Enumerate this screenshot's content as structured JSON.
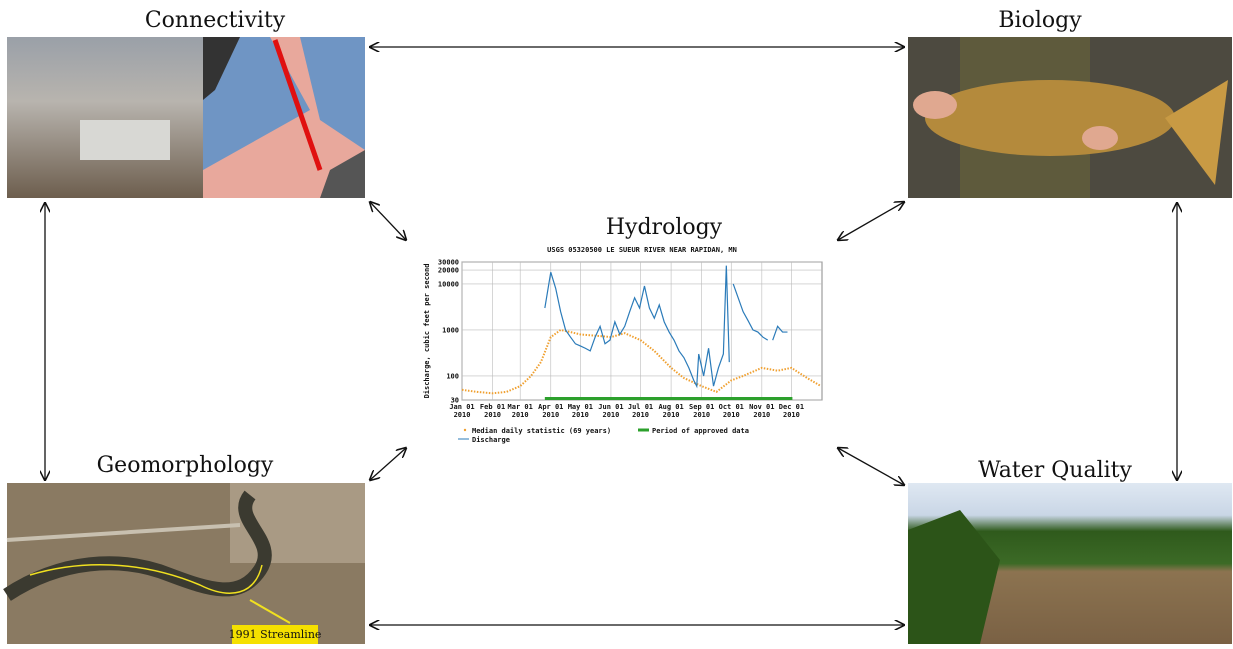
{
  "nodes": [
    {
      "label": "Connectivity"
    },
    {
      "label": "Biology"
    },
    {
      "label": "Hydrology"
    },
    {
      "label": "Geomorphology"
    },
    {
      "label": "Water Quality"
    }
  ],
  "annotation": "1991 Streamline",
  "chart_data": {
    "type": "line",
    "title": "USGS 05320500 LE SUEUR RIVER NEAR RAPIDAN, MN",
    "y_label": "Discharge, cubic feet per second",
    "log_y": true,
    "grid": true,
    "xlim": [
      0,
      365
    ],
    "ylim": [
      30,
      30000
    ],
    "yticks": [
      30,
      100,
      1000,
      10000,
      20000,
      30000
    ],
    "xticks": [
      {
        "value": 0,
        "label": "Jan 01 2010"
      },
      {
        "value": 31,
        "label": "Feb 01 2010"
      },
      {
        "value": 59,
        "label": "Mar 01 2010"
      },
      {
        "value": 90,
        "label": "Apr 01 2010"
      },
      {
        "value": 120,
        "label": "May 01 2010"
      },
      {
        "value": 151,
        "label": "Jun 01 2010"
      },
      {
        "value": 181,
        "label": "Jul 01 2010"
      },
      {
        "value": 212,
        "label": "Aug 01 2010"
      },
      {
        "value": 243,
        "label": "Sep 01 2010"
      },
      {
        "value": 273,
        "label": "Oct 01 2010"
      },
      {
        "value": 304,
        "label": "Nov 01 2010"
      },
      {
        "value": 334,
        "label": "Dec 01 2010"
      }
    ],
    "series": [
      {
        "name": "Median daily statistic (69 years)",
        "color": "#f0a030",
        "style": "dots",
        "x": [
          0,
          15,
          31,
          45,
          59,
          70,
          80,
          90,
          100,
          110,
          120,
          135,
          151,
          165,
          181,
          195,
          212,
          225,
          243,
          258,
          273,
          285,
          304,
          320,
          334,
          350,
          364
        ],
        "values": [
          50,
          45,
          42,
          45,
          60,
          100,
          200,
          700,
          1000,
          900,
          800,
          750,
          700,
          850,
          600,
          350,
          150,
          90,
          60,
          45,
          80,
          100,
          150,
          130,
          150,
          90,
          60
        ]
      },
      {
        "name": "Discharge",
        "color": "#2b7bb9",
        "style": "line",
        "x": [
          84,
          90,
          95,
          100,
          105,
          110,
          115,
          120,
          125,
          130,
          135,
          140,
          145,
          150,
          155,
          160,
          165,
          170,
          175,
          180,
          185,
          190,
          195,
          200,
          205,
          210,
          215,
          220,
          225,
          230,
          235,
          238,
          240,
          245,
          250,
          255,
          260,
          265,
          268,
          271,
          273,
          275,
          280,
          285,
          290,
          295,
          300,
          305,
          310,
          313,
          315,
          320,
          325,
          330
        ],
        "values": [
          3000,
          18000,
          8000,
          2500,
          1000,
          700,
          500,
          450,
          400,
          350,
          700,
          1200,
          500,
          600,
          1500,
          800,
          1200,
          2500,
          5000,
          3000,
          9000,
          3000,
          1800,
          3500,
          1500,
          900,
          600,
          350,
          250,
          150,
          80,
          60,
          300,
          100,
          400,
          60,
          150,
          300,
          25000,
          200,
          null,
          10000,
          5000,
          2500,
          1600,
          1000,
          900,
          700,
          600,
          null,
          600,
          1200,
          900,
          900
        ]
      }
    ],
    "approved": {
      "name": "Period of approved data",
      "color": "#2ca02c",
      "x": [
        84,
        335
      ]
    }
  }
}
